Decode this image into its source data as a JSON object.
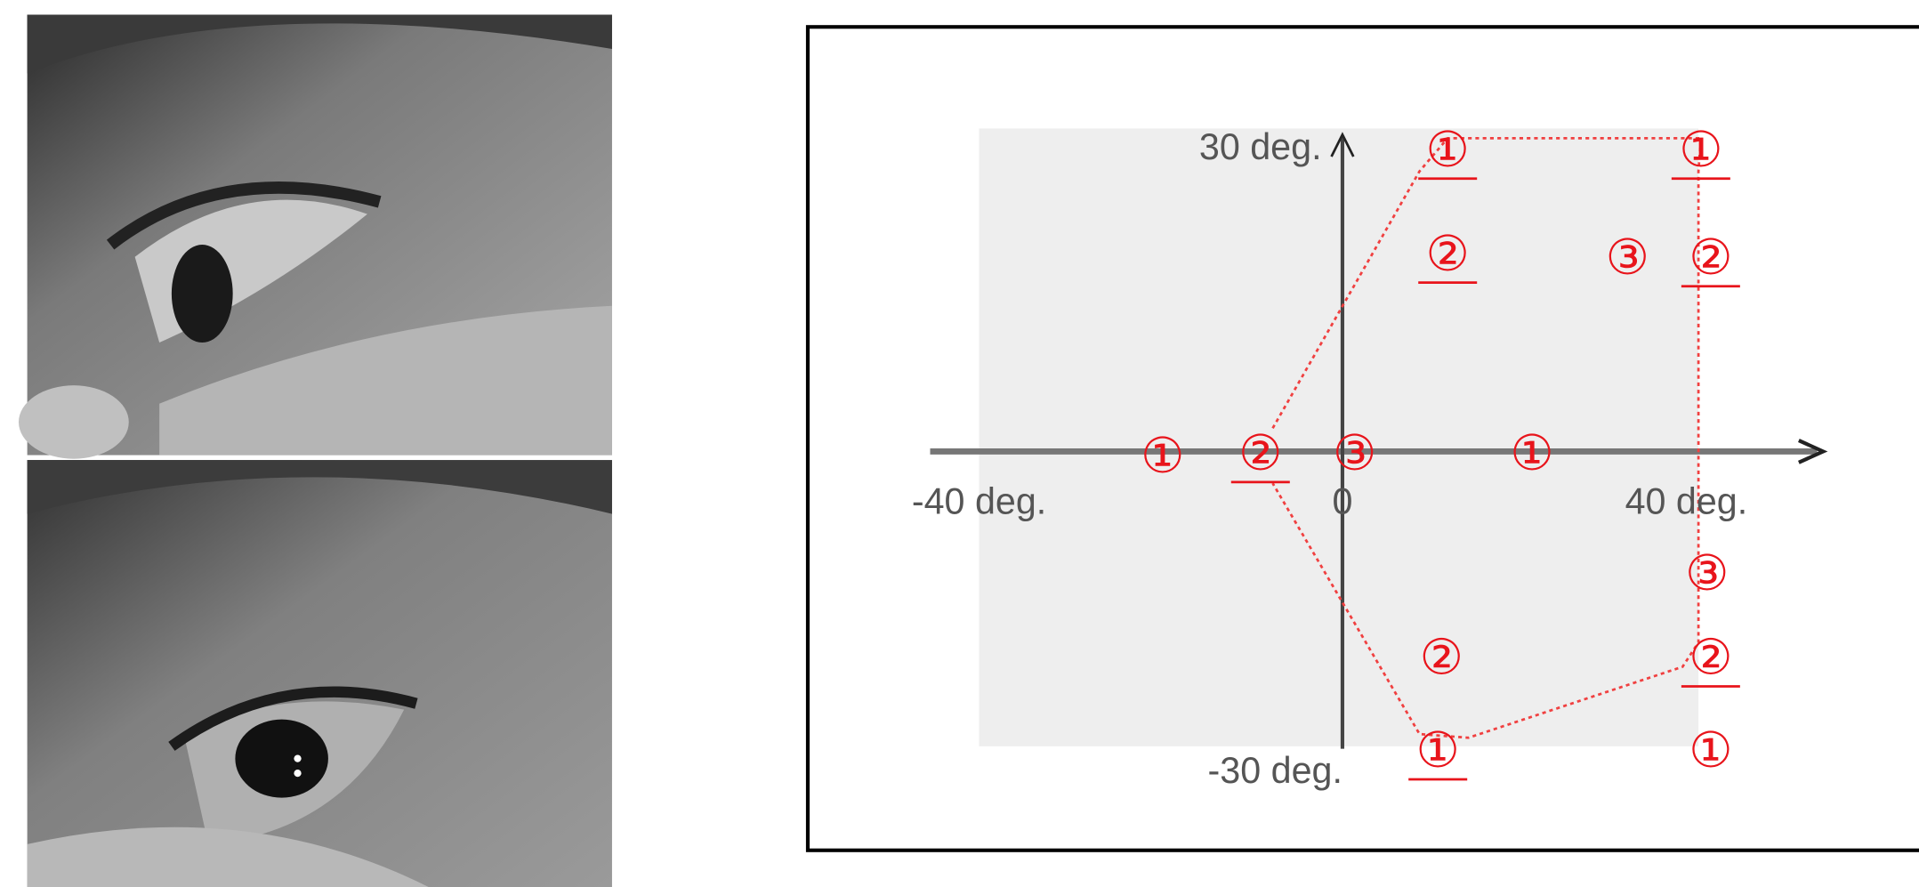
{
  "diagram": {
    "axis_labels": {
      "y_top": "30 deg.",
      "y_bottom": "-30 deg.",
      "x_left": "-40 deg.",
      "x_origin": "0",
      "x_right": "40 deg."
    },
    "points": [
      {
        "label": "①"
      },
      {
        "label": "①"
      },
      {
        "label": "②"
      },
      {
        "label": "③"
      },
      {
        "label": "②"
      },
      {
        "label": "①"
      },
      {
        "label": "②"
      },
      {
        "label": "③"
      },
      {
        "label": "①"
      },
      {
        "label": "③"
      },
      {
        "label": "②"
      },
      {
        "label": "②"
      },
      {
        "label": "①"
      },
      {
        "label": "①"
      }
    ]
  }
}
